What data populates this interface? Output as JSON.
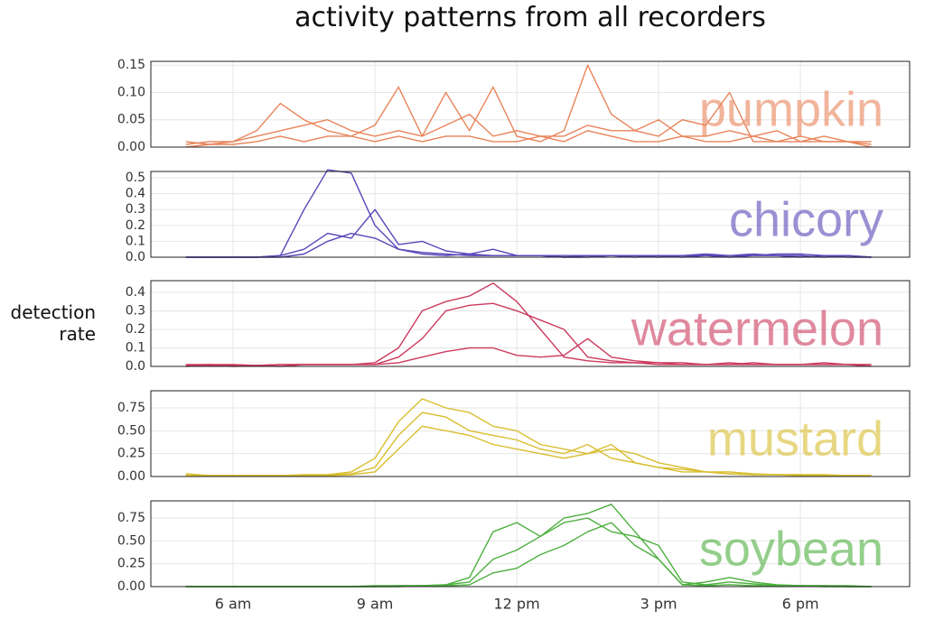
{
  "title": "activity patterns from all recorders",
  "y_label": "detection rate",
  "chart_data": [
    {
      "type": "line",
      "label": "pumpkin",
      "xlim": [
        4.26,
        20.31
      ],
      "ylim": [
        0,
        0.157
      ],
      "yticks": [
        {
          "value": 0,
          "label": "0.00"
        },
        0.05,
        {
          "value": 0.1,
          "label": "0.10"
        },
        0.15
      ],
      "x": [
        5,
        5.5,
        6,
        6.5,
        7,
        7.5,
        8,
        8.5,
        9,
        9.5,
        10,
        10.5,
        11,
        11.5,
        12,
        12.5,
        13,
        13.5,
        14,
        14.5,
        15,
        15.5,
        16,
        16.5,
        17,
        17.5,
        18,
        18.5,
        19,
        19.5
      ],
      "series": [
        {
          "color": "#e8845a",
          "values": [
            0.01,
            0.005,
            0.01,
            0.03,
            0.08,
            0.05,
            0.03,
            0.02,
            0.04,
            0.11,
            0.02,
            0.1,
            0.03,
            0.11,
            0.02,
            0.01,
            0.03,
            0.15,
            0.06,
            0.03,
            0.02,
            0.05,
            0.04,
            0.1,
            0.01,
            0.01,
            0.02,
            0.01,
            0.01,
            0.01
          ]
        },
        {
          "color": "#e8845a",
          "values": [
            0.005,
            0.01,
            0.01,
            0.02,
            0.03,
            0.04,
            0.05,
            0.03,
            0.02,
            0.03,
            0.02,
            0.04,
            0.06,
            0.02,
            0.03,
            0.02,
            0.02,
            0.04,
            0.03,
            0.03,
            0.05,
            0.02,
            0.02,
            0.03,
            0.02,
            0.03,
            0.01,
            0.02,
            0.01,
            0.005
          ]
        },
        {
          "color": "#e8845a",
          "values": [
            0,
            0.005,
            0.005,
            0.01,
            0.02,
            0.01,
            0.02,
            0.02,
            0.01,
            0.02,
            0.01,
            0.02,
            0.02,
            0.01,
            0.01,
            0.02,
            0.01,
            0.03,
            0.02,
            0.01,
            0.01,
            0.02,
            0.01,
            0.01,
            0.02,
            0.01,
            0.01,
            0.01,
            0.01,
            0
          ]
        }
      ]
    },
    {
      "type": "line",
      "label": "chicory",
      "xlim": [
        4.26,
        20.31
      ],
      "ylim": [
        0,
        0.54
      ],
      "yticks": [
        {
          "value": 0,
          "label": "0.0"
        },
        0.1,
        0.2,
        0.3,
        0.4,
        0.5
      ],
      "x": [
        5,
        5.5,
        6,
        6.5,
        7,
        7.5,
        8,
        8.5,
        9,
        9.5,
        10,
        10.5,
        11,
        11.5,
        12,
        12.5,
        13,
        13.5,
        14,
        14.5,
        15,
        15.5,
        16,
        16.5,
        17,
        17.5,
        18,
        18.5,
        19,
        19.5
      ],
      "series": [
        {
          "color": "#5a46b8",
          "values": [
            0,
            0,
            0,
            0,
            0.01,
            0.3,
            0.55,
            0.53,
            0.2,
            0.05,
            0.02,
            0.01,
            0.02,
            0.01,
            0.01,
            0.01,
            0,
            0.01,
            0.01,
            0.01,
            0,
            0.01,
            0.01,
            0.01,
            0.02,
            0.01,
            0.01,
            0,
            0.01,
            0
          ]
        },
        {
          "color": "#5a46b8",
          "values": [
            0,
            0,
            0,
            0,
            0.01,
            0.05,
            0.15,
            0.12,
            0.3,
            0.08,
            0.1,
            0.04,
            0.02,
            0.05,
            0.01,
            0.01,
            0.01,
            0.01,
            0.01,
            0.01,
            0.01,
            0.01,
            0.02,
            0.01,
            0.01,
            0.02,
            0.02,
            0.01,
            0.01,
            0
          ]
        },
        {
          "color": "#5a46b8",
          "values": [
            0,
            0,
            0,
            0,
            0,
            0.02,
            0.1,
            0.15,
            0.12,
            0.05,
            0.03,
            0.02,
            0.01,
            0.01,
            0.01,
            0.01,
            0,
            0,
            0.01,
            0,
            0.01,
            0,
            0.01,
            0,
            0.01,
            0.01,
            0,
            0.01,
            0,
            0
          ]
        }
      ]
    },
    {
      "type": "line",
      "label": "watermelon",
      "xlim": [
        4.26,
        20.31
      ],
      "ylim": [
        0,
        0.463
      ],
      "yticks": [
        {
          "value": 0,
          "label": "0.0"
        },
        0.1,
        0.2,
        0.3,
        0.4
      ],
      "x": [
        5,
        5.5,
        6,
        6.5,
        7,
        7.5,
        8,
        8.5,
        9,
        9.5,
        10,
        10.5,
        11,
        11.5,
        12,
        12.5,
        13,
        13.5,
        14,
        14.5,
        15,
        15.5,
        16,
        16.5,
        17,
        17.5,
        18,
        18.5,
        19,
        19.5
      ],
      "series": [
        {
          "color": "#cc3a5e",
          "values": [
            0.01,
            0.01,
            0.005,
            0.005,
            0.01,
            0.01,
            0.01,
            0.01,
            0.02,
            0.1,
            0.3,
            0.35,
            0.38,
            0.45,
            0.35,
            0.2,
            0.05,
            0.03,
            0.02,
            0.02,
            0.01,
            0.01,
            0.01,
            0.02,
            0.01,
            0.01,
            0.01,
            0.02,
            0.01,
            0.01
          ]
        },
        {
          "color": "#cc3a5e",
          "values": [
            0.005,
            0.01,
            0.01,
            0.005,
            0.01,
            0.01,
            0.01,
            0.01,
            0.01,
            0.05,
            0.15,
            0.3,
            0.33,
            0.34,
            0.3,
            0.25,
            0.2,
            0.05,
            0.03,
            0.02,
            0.02,
            0.01,
            0.01,
            0.01,
            0.01,
            0.01,
            0.01,
            0.01,
            0.01,
            0.01
          ]
        },
        {
          "color": "#cc3a5e",
          "values": [
            0,
            0.005,
            0,
            0.005,
            0,
            0.01,
            0.01,
            0.01,
            0.01,
            0.02,
            0.05,
            0.08,
            0.1,
            0.1,
            0.06,
            0.05,
            0.06,
            0.15,
            0.05,
            0.03,
            0.02,
            0.02,
            0.01,
            0.01,
            0.02,
            0.01,
            0.01,
            0.01,
            0.01,
            0
          ]
        }
      ]
    },
    {
      "type": "line",
      "label": "mustard",
      "xlim": [
        4.26,
        20.31
      ],
      "ylim": [
        0,
        0.9375
      ],
      "yticks": [
        {
          "value": 0,
          "label": "0.00"
        },
        0.25,
        {
          "value": 0.5,
          "label": "0.50"
        },
        0.75
      ],
      "x": [
        5,
        5.5,
        6,
        6.5,
        7,
        7.5,
        8,
        8.5,
        9,
        9.5,
        10,
        10.5,
        11,
        11.5,
        12,
        12.5,
        13,
        13.5,
        14,
        14.5,
        15,
        15.5,
        16,
        16.5,
        17,
        17.5,
        18,
        18.5,
        19,
        19.5
      ],
      "series": [
        {
          "color": "#d9bd2e",
          "values": [
            0.03,
            0.01,
            0.01,
            0.01,
            0.01,
            0.01,
            0.02,
            0.05,
            0.2,
            0.6,
            0.85,
            0.75,
            0.7,
            0.55,
            0.5,
            0.35,
            0.3,
            0.25,
            0.3,
            0.25,
            0.15,
            0.1,
            0.05,
            0.05,
            0.03,
            0.02,
            0.02,
            0.02,
            0.01,
            0.01
          ]
        },
        {
          "color": "#d9bd2e",
          "values": [
            0.01,
            0.01,
            0.01,
            0.01,
            0.01,
            0.02,
            0.02,
            0.03,
            0.1,
            0.45,
            0.7,
            0.65,
            0.5,
            0.45,
            0.4,
            0.3,
            0.25,
            0.35,
            0.2,
            0.15,
            0.1,
            0.08,
            0.05,
            0.03,
            0.02,
            0.02,
            0.02,
            0.01,
            0.01,
            0.01
          ]
        },
        {
          "color": "#d9bd2e",
          "values": [
            0.01,
            0.01,
            0.01,
            0.01,
            0.01,
            0.01,
            0.01,
            0.02,
            0.05,
            0.3,
            0.55,
            0.5,
            0.45,
            0.35,
            0.3,
            0.25,
            0.2,
            0.25,
            0.35,
            0.15,
            0.1,
            0.05,
            0.05,
            0.03,
            0.02,
            0.02,
            0.01,
            0.01,
            0.01,
            0.01
          ]
        }
      ]
    },
    {
      "type": "line",
      "label": "soybean",
      "xlim": [
        4.26,
        20.31
      ],
      "ylim": [
        0,
        0.9375
      ],
      "yticks": [
        {
          "value": 0,
          "label": "0.00"
        },
        0.25,
        {
          "value": 0.5,
          "label": "0.50"
        },
        0.75
      ],
      "xticks": [
        {
          "value": 6,
          "label": "6 am"
        },
        {
          "value": 9,
          "label": "9 am"
        },
        {
          "value": 12,
          "label": "12 pm"
        },
        {
          "value": 15,
          "label": "3 pm"
        },
        {
          "value": 18,
          "label": "6 pm"
        }
      ],
      "x": [
        5,
        5.5,
        6,
        6.5,
        7,
        7.5,
        8,
        8.5,
        9,
        9.5,
        10,
        10.5,
        11,
        11.5,
        12,
        12.5,
        13,
        13.5,
        14,
        14.5,
        15,
        15.5,
        16,
        16.5,
        17,
        17.5,
        18,
        18.5,
        19,
        19.5
      ],
      "series": [
        {
          "color": "#4caf3e",
          "values": [
            0,
            0,
            0,
            0,
            0,
            0,
            0,
            0,
            0.01,
            0.01,
            0.01,
            0.02,
            0.1,
            0.6,
            0.7,
            0.55,
            0.75,
            0.8,
            0.9,
            0.6,
            0.3,
            0.02,
            0.05,
            0.1,
            0.05,
            0.02,
            0.01,
            0.01,
            0.01,
            0
          ]
        },
        {
          "color": "#4caf3e",
          "values": [
            0,
            0,
            0,
            0,
            0,
            0,
            0,
            0,
            0,
            0.01,
            0.01,
            0.02,
            0.05,
            0.3,
            0.4,
            0.55,
            0.7,
            0.75,
            0.6,
            0.55,
            0.45,
            0.05,
            0.02,
            0.05,
            0.03,
            0.01,
            0.01,
            0.01,
            0,
            0
          ]
        },
        {
          "color": "#4caf3e",
          "values": [
            0,
            0,
            0,
            0,
            0,
            0,
            0,
            0,
            0,
            0,
            0.01,
            0.01,
            0.02,
            0.15,
            0.2,
            0.35,
            0.45,
            0.6,
            0.7,
            0.45,
            0.3,
            0.02,
            0.01,
            0.02,
            0.01,
            0.01,
            0.01,
            0,
            0,
            0
          ]
        }
      ]
    }
  ]
}
